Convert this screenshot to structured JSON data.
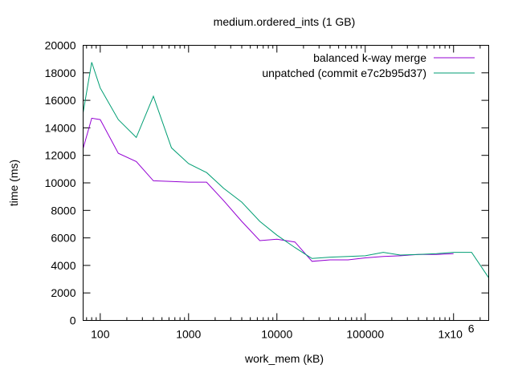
{
  "chart_data": {
    "type": "line",
    "title": "medium.ordered_ints (1 GB)",
    "xlabel": "work_mem (kB)",
    "ylabel": "time (ms)",
    "xscale": "log",
    "xlim": [
      64,
      2500000
    ],
    "ylim": [
      0,
      20000
    ],
    "x_ticks": [
      100,
      1000,
      10000,
      100000,
      1000000
    ],
    "x_tick_labels": [
      "100",
      "1000",
      "10000",
      "100000",
      "1x10"
    ],
    "x_tick_label_exponent": "6",
    "y_ticks": [
      0,
      2000,
      4000,
      6000,
      8000,
      10000,
      12000,
      14000,
      16000,
      18000,
      20000
    ],
    "y_tick_labels": [
      "0",
      "2000",
      "4000",
      "6000",
      "8000",
      "10000",
      "12000",
      "14000",
      "16000",
      "18000",
      "20000"
    ],
    "grid": false,
    "legend_position": "top-right",
    "series": [
      {
        "name": "balanced k-way merge",
        "color": "#9400d3",
        "x": [
          64,
          80,
          100,
          160,
          256,
          400,
          640,
          1000,
          1600,
          2500,
          4000,
          6400,
          10000,
          16000,
          25000,
          40000,
          64000,
          100000,
          160000,
          250000,
          400000,
          640000,
          1000000
        ],
        "values": [
          12500,
          14700,
          14600,
          12150,
          11550,
          10150,
          10100,
          10050,
          10050,
          8700,
          7200,
          5800,
          5900,
          5700,
          4300,
          4400,
          4400,
          4550,
          4650,
          4700,
          4800,
          4800,
          4850
        ]
      },
      {
        "name": "unpatched (commit e7c2b95d37)",
        "color": "#009e73",
        "x": [
          64,
          80,
          100,
          160,
          256,
          400,
          640,
          1000,
          1600,
          2500,
          4000,
          6400,
          10000,
          16000,
          25000,
          40000,
          64000,
          100000,
          160000,
          250000,
          400000,
          640000,
          1000000,
          1600000,
          2500000
        ],
        "values": [
          15100,
          18770,
          16900,
          14600,
          13300,
          16300,
          12550,
          11400,
          10750,
          9600,
          8600,
          7200,
          6200,
          5300,
          4500,
          4600,
          4650,
          4700,
          4950,
          4750,
          4800,
          4850,
          4950,
          4950,
          3100
        ]
      }
    ]
  }
}
